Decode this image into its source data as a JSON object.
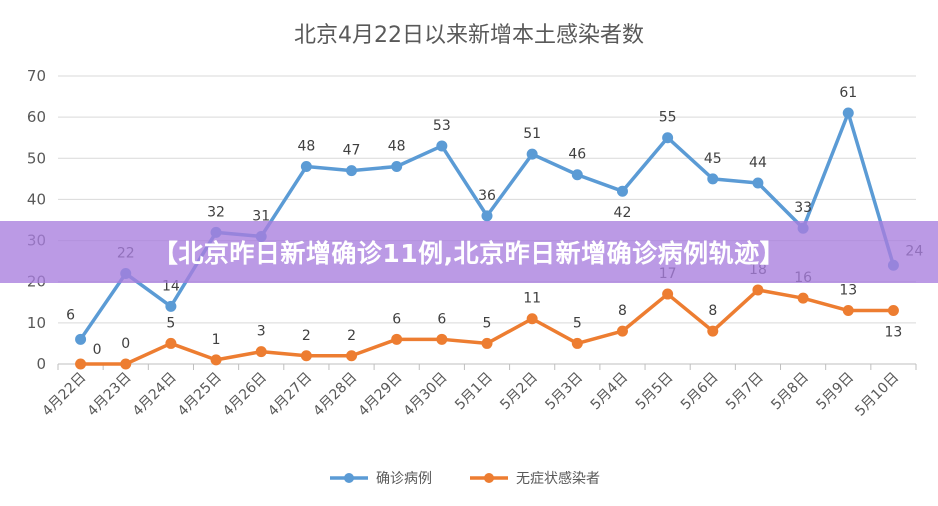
{
  "banner": {
    "text": "【北京昨日新增确诊11例,北京昨日新增确诊病例轨迹】"
  },
  "chart_data": {
    "type": "line",
    "title": "北京4月22日以来新增本土感染者数",
    "categories": [
      "4月22日",
      "4月23日",
      "4月24日",
      "4月25日",
      "4月26日",
      "4月27日",
      "4月28日",
      "4月29日",
      "4月30日",
      "5月1日",
      "5月2日",
      "5月3日",
      "5月4日",
      "5月5日",
      "5月6日",
      "5月7日",
      "5月8日",
      "5月9日",
      "5月10日"
    ],
    "series": [
      {
        "name": "确诊病例",
        "color": "#5B9BD5",
        "values": [
          6,
          22,
          14,
          32,
          31,
          48,
          47,
          48,
          53,
          36,
          51,
          46,
          42,
          55,
          45,
          44,
          33,
          61,
          24
        ]
      },
      {
        "name": "无症状感染者",
        "color": "#ED7D31",
        "values": [
          0,
          0,
          5,
          1,
          3,
          2,
          2,
          6,
          6,
          5,
          11,
          5,
          8,
          17,
          8,
          18,
          16,
          13,
          13
        ]
      }
    ],
    "ylim": [
      0,
      70
    ],
    "yticks": [
      0,
      10,
      20,
      30,
      40,
      50,
      60,
      70
    ],
    "grid": true,
    "legend": "bottom"
  }
}
